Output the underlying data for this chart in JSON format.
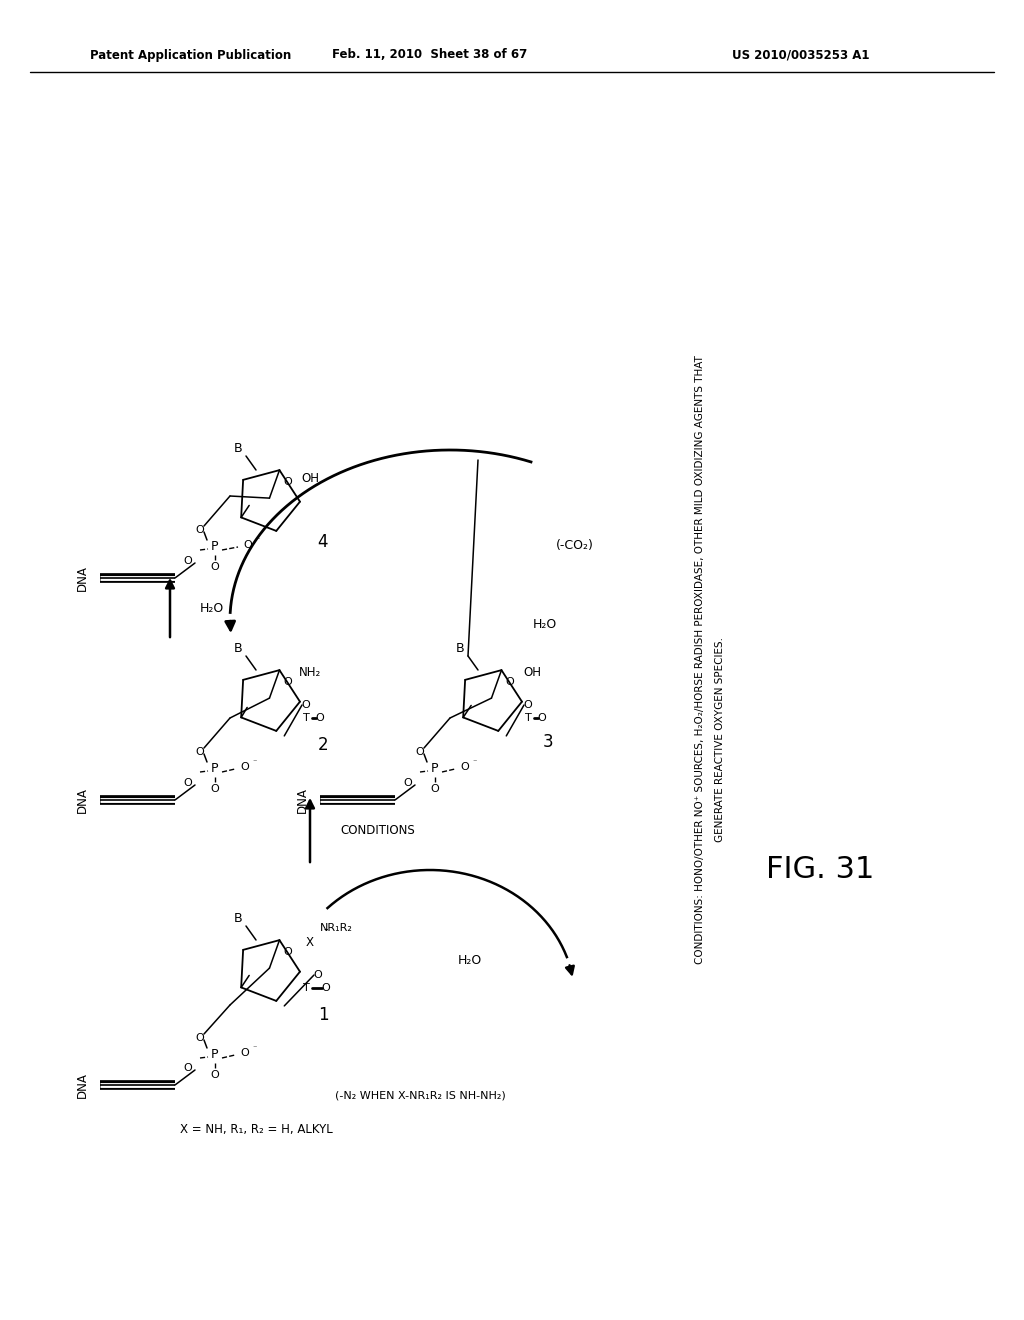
{
  "background_color": "#ffffff",
  "header_left": "Patent Application Publication",
  "header_center": "Feb. 11, 2010  Sheet 38 of 67",
  "header_right": "US 2010/0035253 A1",
  "figure_label": "FIG. 31",
  "conditions_line1": "CONDITIONS: HONO/OTHER NO⁺ SOURCES, H₂O₂/HORSE RADISH PEROXIDASE, OTHER MILD OXIDIZING AGENTS THAT",
  "conditions_line2": "GENERATE REACTIVE OXYGEN SPECIES.",
  "text_color": "#000000",
  "line_color": "#000000"
}
